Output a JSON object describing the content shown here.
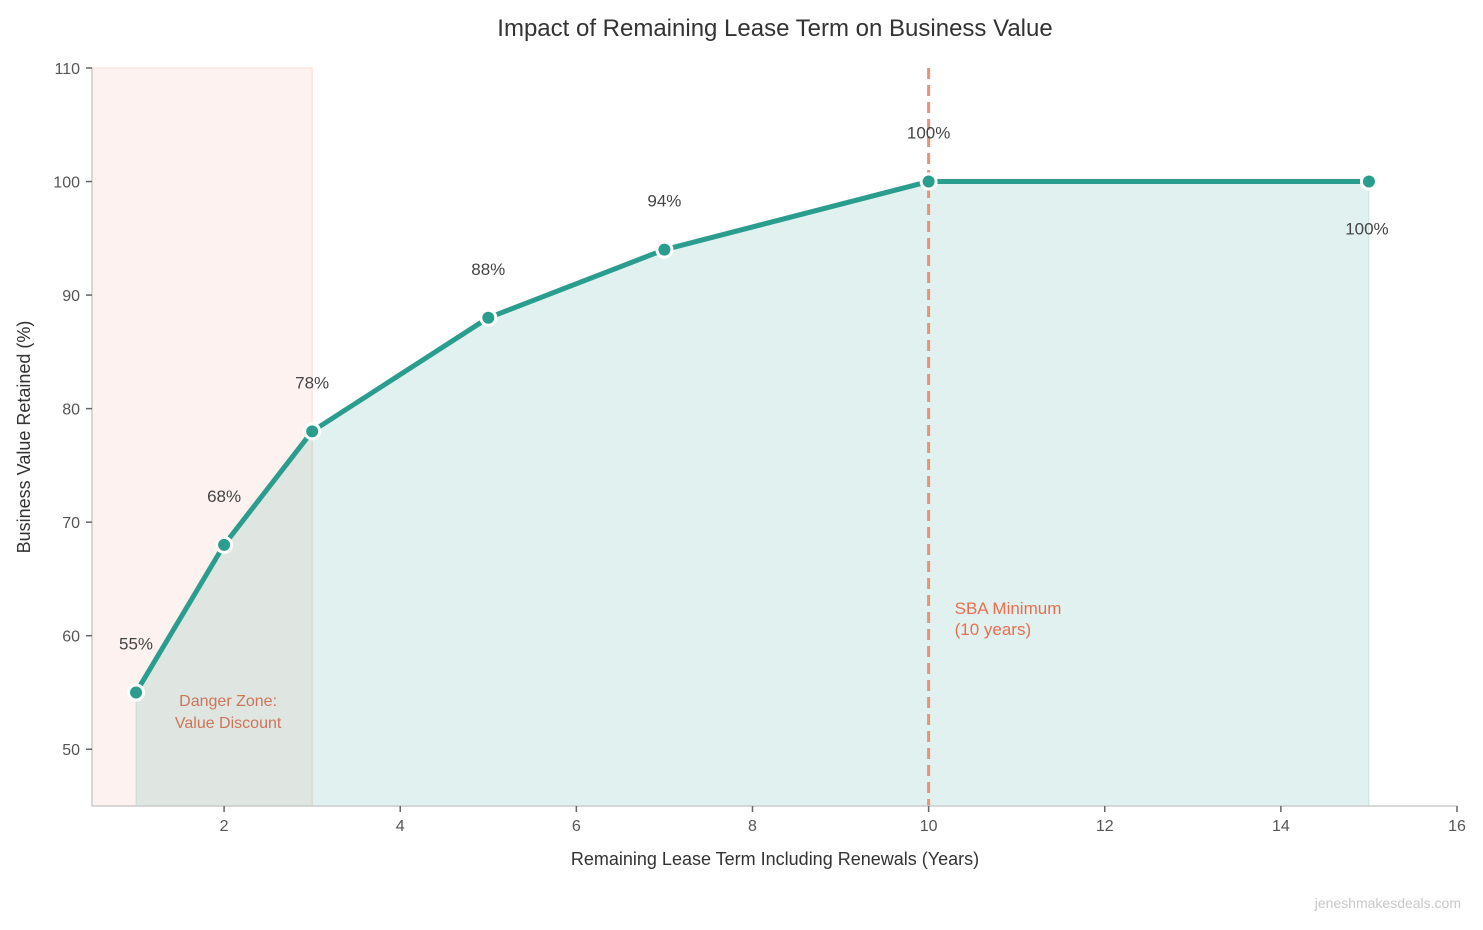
{
  "chart_data": {
    "type": "line",
    "title": "Impact of Remaining Lease Term on Business Value",
    "xlabel": "Remaining Lease Term Including Renewals (Years)",
    "ylabel": "Business Value Retained (%)",
    "xlim": [
      0.5,
      16
    ],
    "ylim": [
      45,
      110
    ],
    "xticks": [
      2,
      4,
      6,
      8,
      10,
      12,
      14,
      16
    ],
    "yticks": [
      50,
      60,
      70,
      80,
      90,
      100,
      110
    ],
    "grid": false,
    "series": [
      {
        "x": [
          1,
          2,
          3,
          5,
          7,
          10,
          15
        ],
        "y": [
          55,
          68,
          78,
          88,
          94,
          100,
          100
        ],
        "labels": [
          "55%",
          "68%",
          "78%",
          "88%",
          "94%",
          "100%",
          "100%"
        ],
        "color": "#2a9d8f",
        "filled": true
      }
    ],
    "shaded_region": {
      "x": [
        0.5,
        3
      ],
      "label": "Danger Zone:\nValue Discount",
      "color": "#e76f51"
    },
    "reference_line": {
      "x": 10,
      "label": "SBA Minimum\n(10 years)",
      "color": "#e76f51",
      "style": "dashed"
    },
    "watermark": "jeneshmakesdeals.com"
  }
}
